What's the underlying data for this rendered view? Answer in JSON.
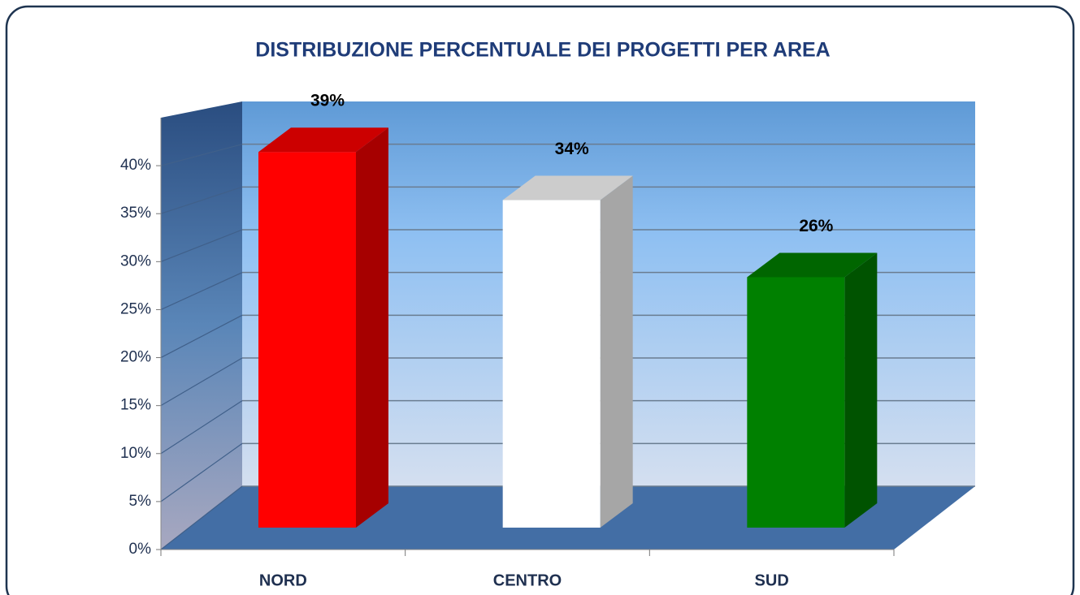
{
  "chart_data": {
    "type": "bar3d",
    "title": "DISTRIBUZIONE PERCENTUALE DEI PROGETTI PER AREA",
    "categories": [
      "NORD",
      "CENTRO",
      "SUD"
    ],
    "values": [
      39,
      34,
      26
    ],
    "value_labels": [
      "39%",
      "34%",
      "26%"
    ],
    "colors": [
      "#ff0000",
      "#ffffff",
      "#008000"
    ],
    "ylim": [
      0,
      45
    ],
    "yticks": [
      {
        "value": 0,
        "label": "0%"
      },
      {
        "value": 5,
        "label": "5%"
      },
      {
        "value": 10,
        "label": "10%"
      },
      {
        "value": 15,
        "label": "15%"
      },
      {
        "value": 20,
        "label": "20%"
      },
      {
        "value": 25,
        "label": "25%"
      },
      {
        "value": 30,
        "label": "30%"
      },
      {
        "value": 35,
        "label": "35%"
      },
      {
        "value": 40,
        "label": "40%"
      }
    ],
    "grid": true
  }
}
